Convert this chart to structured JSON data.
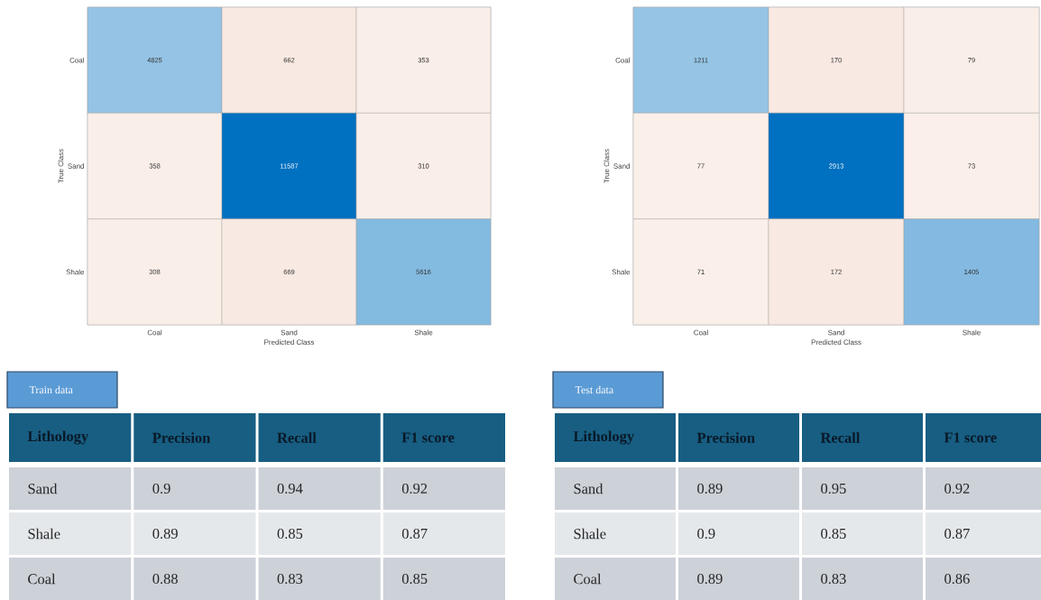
{
  "chart_data": [
    {
      "type": "heatmap",
      "categories": [
        "Coal",
        "Sand",
        "Shale"
      ],
      "y_categories": [
        "Coal",
        "Sand",
        "Shale"
      ],
      "cells": [
        [
          4825,
          662,
          353
        ],
        [
          358,
          11587,
          310
        ],
        [
          308,
          669,
          5616
        ]
      ],
      "xlabel": "Predicted Class",
      "ylabel": "True Class",
      "data_labels": true
    },
    {
      "type": "heatmap",
      "categories": [
        "Coal",
        "Sand",
        "Shale"
      ],
      "y_categories": [
        "Coal",
        "Sand",
        "Shale"
      ],
      "cells": [
        [
          1211,
          170,
          79
        ],
        [
          77,
          2913,
          73
        ],
        [
          71,
          172,
          1405
        ]
      ],
      "xlabel": "Predicted Class",
      "ylabel": "True Class",
      "data_labels": true
    },
    {
      "type": "other",
      "title": "Train data",
      "ylabel": "Lithology",
      "categories": [
        "Precision",
        "Recall",
        "F1 score"
      ],
      "y_categories": [
        "Sand",
        "Shale",
        "Coal"
      ],
      "cell_labels": [
        [
          "0.9",
          "0.94",
          "0.92"
        ],
        [
          "0.89",
          "0.85",
          "0.87"
        ],
        [
          "0.88",
          "0.83",
          "0.85"
        ]
      ]
    },
    {
      "type": "other",
      "title": "Test data",
      "ylabel": "Lithology",
      "categories": [
        "Precision",
        "Recall",
        "F1 score"
      ],
      "y_categories": [
        "Sand",
        "Shale",
        "Coal"
      ],
      "cell_labels": [
        [
          "0.89",
          "0.95",
          "0.92"
        ],
        [
          "0.9",
          "0.85",
          "0.87"
        ],
        [
          "0.89",
          "0.83",
          "0.86"
        ]
      ]
    }
  ]
}
